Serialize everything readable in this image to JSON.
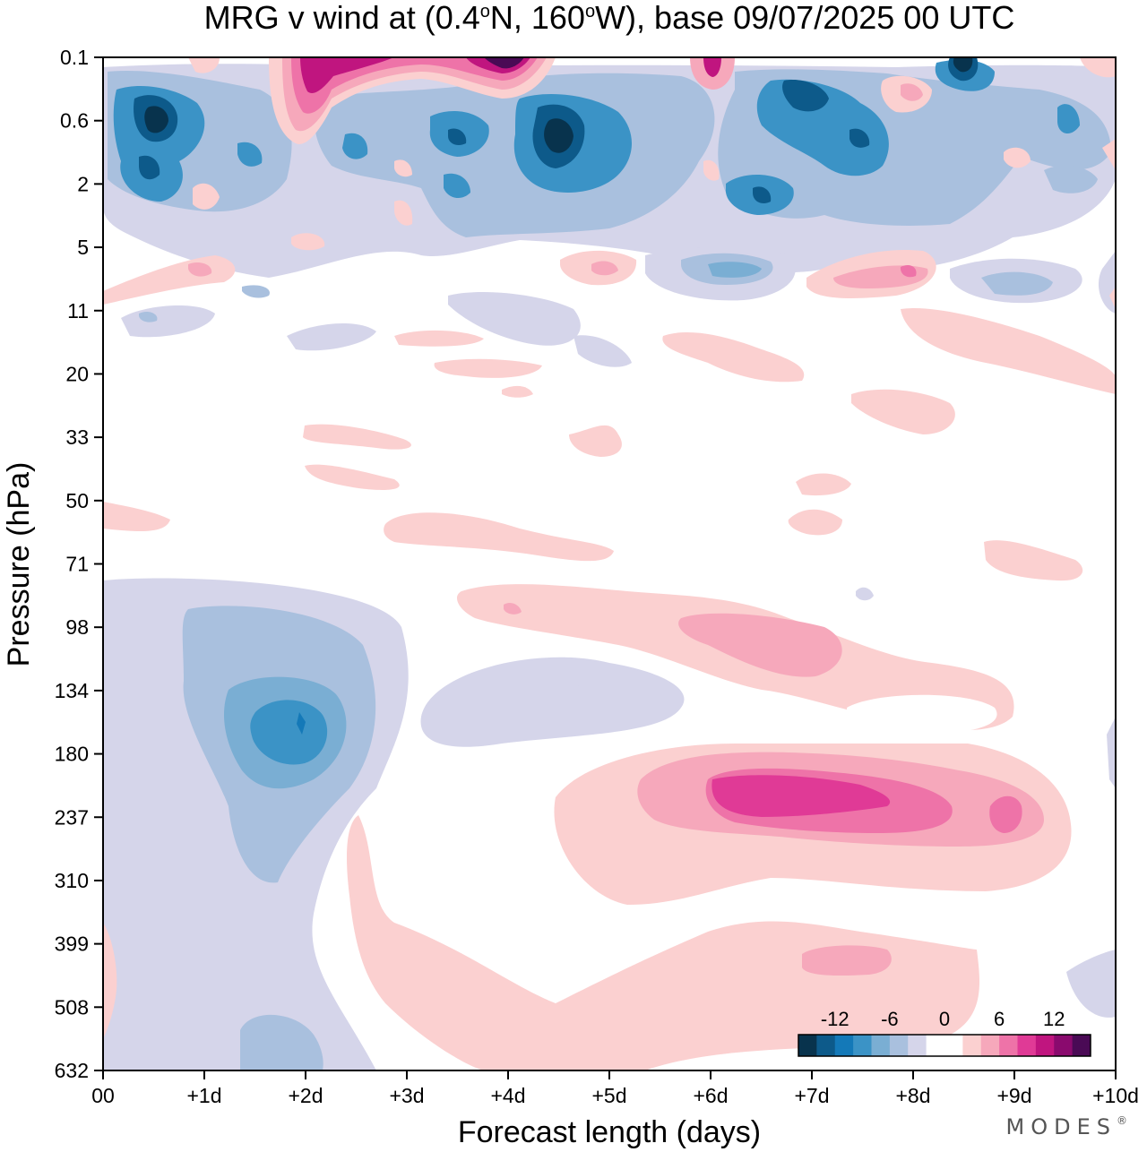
{
  "chart_data": {
    "type": "heatmap",
    "title": "MRG v wind at (0.4°N, 160°W),  base 09/07/2025  00 UTC",
    "title_parts": {
      "prefix": "MRG v wind at (0.4",
      "deg": "o",
      "mid": "N, 160",
      "suffix": "W),  base 09/07/2025  00 UTC"
    },
    "xlabel": "Forecast length (days)",
    "ylabel": "Pressure (hPa)",
    "x_ticks": [
      "00",
      "+1d",
      "+2d",
      "+3d",
      "+4d",
      "+5d",
      "+6d",
      "+7d",
      "+8d",
      "+9d",
      "+10d"
    ],
    "xlim": [
      0,
      10
    ],
    "y_ticks": [
      "0.1",
      "0.6",
      "2",
      "5",
      "11",
      "20",
      "33",
      "50",
      "71",
      "98",
      "134",
      "180",
      "237",
      "310",
      "399",
      "508",
      "632"
    ],
    "y_scale": "pressure levels, top 0.1 to bottom 632",
    "colorbar": {
      "labels": [
        "-12",
        "-6",
        "0",
        "6",
        "12"
      ],
      "label_values": [
        -12,
        -6,
        0,
        6,
        12
      ],
      "vmin": -16,
      "vmax": 16,
      "colors": [
        "#08334d",
        "#0d5a8a",
        "#1479b8",
        "#3b93c6",
        "#7aaed3",
        "#a9c0de",
        "#d5d5ea",
        "#ffffff",
        "#ffffff",
        "#fbd0d0",
        "#f6a8bb",
        "#ee73a8",
        "#e03a96",
        "#c0157f",
        "#8a0a6e",
        "#4a0a55"
      ]
    },
    "features": [
      {
        "x": 0.5,
        "p": "0.6",
        "value": -14
      },
      {
        "x": 0.5,
        "p": "2",
        "value": -12
      },
      {
        "x": 2.0,
        "p": "0.1",
        "value": 12
      },
      {
        "x": 4.0,
        "p": "0.1",
        "value": 14
      },
      {
        "x": 4.5,
        "p": "0.6",
        "value": -14
      },
      {
        "x": 8.5,
        "p": "0.1",
        "value": -14
      },
      {
        "x": 6.0,
        "p": "0.1",
        "value": 11
      },
      {
        "x": 2.0,
        "p": "134",
        "value": -9
      },
      {
        "x": 7.0,
        "p": "237",
        "value": 9
      },
      {
        "x": 6.3,
        "p": "98",
        "value": 4
      },
      {
        "x": 1.8,
        "p": "632",
        "value": -3
      }
    ]
  },
  "branding": {
    "logo": "MODES",
    "mark": "®"
  }
}
